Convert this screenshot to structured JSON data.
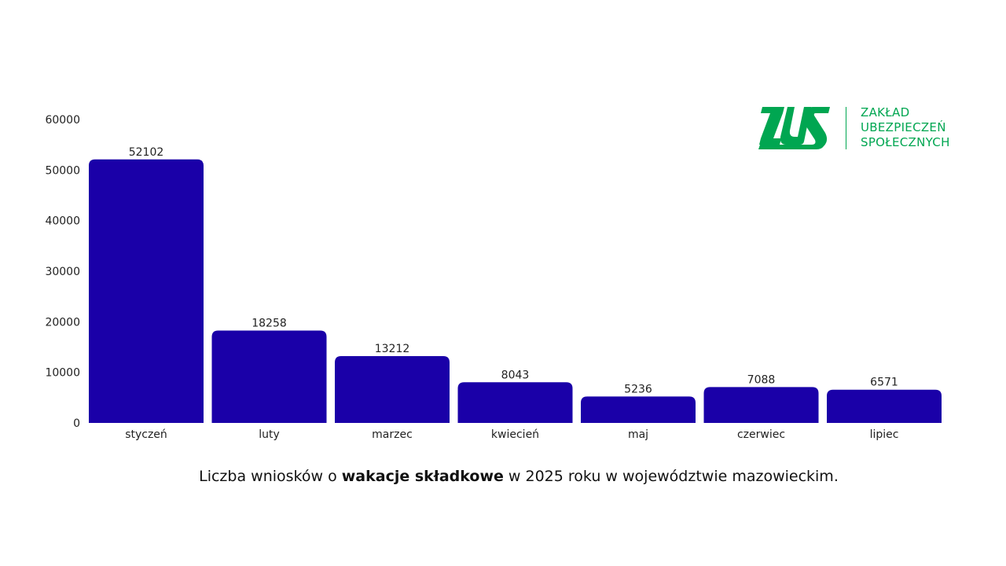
{
  "chart_data": {
    "type": "bar",
    "categories": [
      "styczeń",
      "luty",
      "marzec",
      "kwiecień",
      "maj",
      "czerwiec",
      "lipiec"
    ],
    "values": [
      52102,
      18258,
      13212,
      8043,
      5236,
      7088,
      6571
    ],
    "ylim": [
      0,
      60000
    ],
    "yticks": [
      0,
      10000,
      20000,
      30000,
      40000,
      50000,
      60000
    ],
    "grid": false,
    "bar_color": "#1a00a8",
    "data_labels": true
  },
  "caption": {
    "before": "Liczba wniosków o ",
    "bold": "wakacje składkowe",
    "after": " w 2025 roku w województwie mazowieckim."
  },
  "logo": {
    "mark": "ZUS",
    "lines": [
      "ZAKŁAD",
      "UBEZPIECZEŃ",
      "SPOŁECZNYCH"
    ],
    "color": "#00a651"
  }
}
